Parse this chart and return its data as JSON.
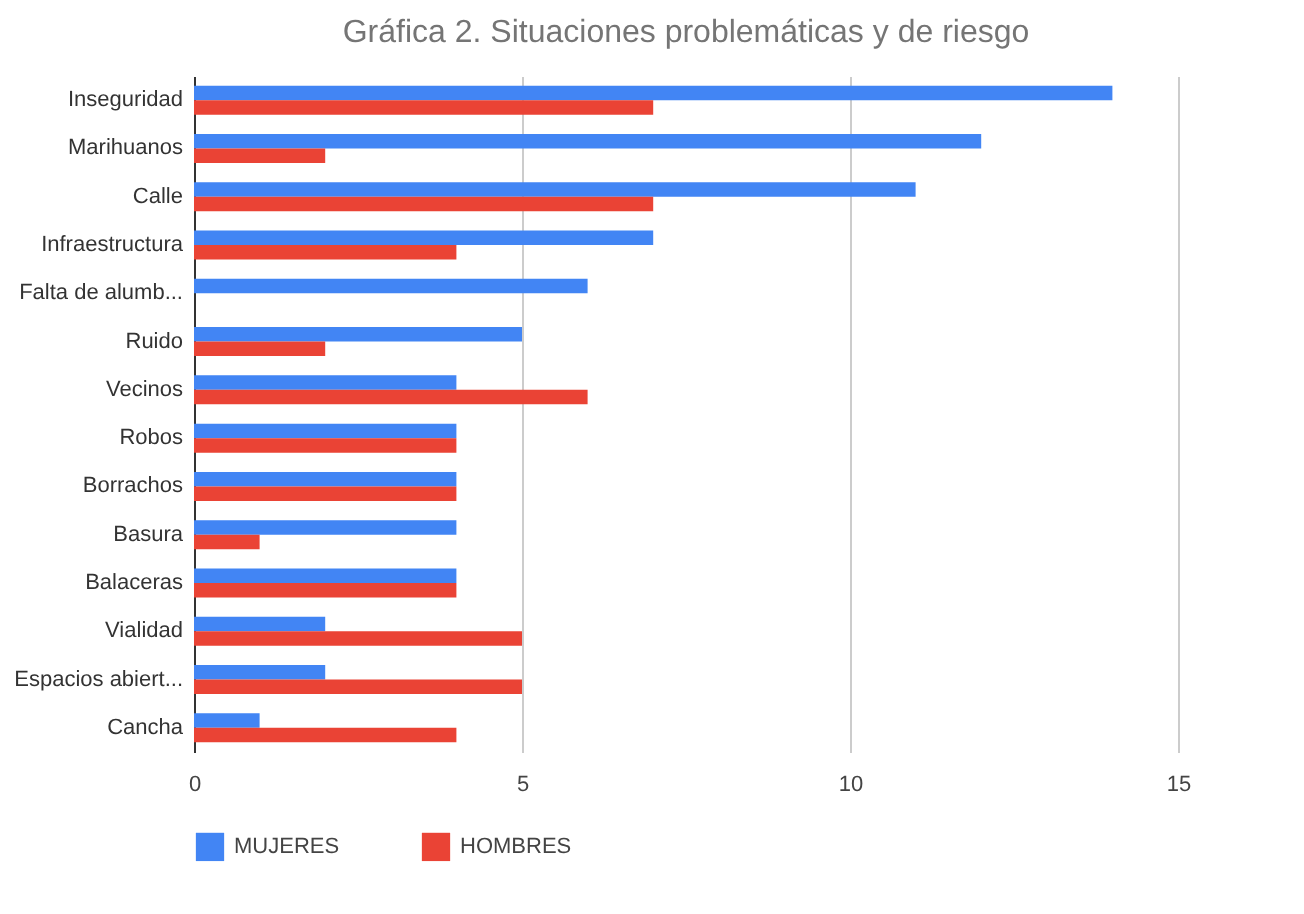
{
  "chart_data": {
    "type": "bar",
    "orientation": "horizontal",
    "title": "Gráfica 2. Situaciones problemáticas y de riesgo",
    "categories": [
      "Inseguridad",
      "Marihuanos",
      "Calle",
      "Infraestructura",
      "Falta de alumb...",
      "Ruido",
      "Vecinos",
      "Robos",
      "Borrachos",
      "Basura",
      "Balaceras",
      "Vialidad",
      "Espacios abiert...",
      "Cancha"
    ],
    "series": [
      {
        "name": "MUJERES",
        "color": "#4285f4",
        "values": [
          14,
          12,
          11,
          7,
          6,
          5,
          4,
          4,
          4,
          4,
          4,
          2,
          2,
          1
        ]
      },
      {
        "name": "HOMBRES",
        "color": "#ea4335",
        "values": [
          7,
          2,
          7,
          4,
          0,
          2,
          6,
          4,
          4,
          1,
          4,
          5,
          5,
          4
        ]
      }
    ],
    "xlim": [
      0,
      15
    ],
    "xticks": [
      0,
      5,
      10,
      15
    ],
    "grid": "x",
    "legend": "bottom"
  }
}
